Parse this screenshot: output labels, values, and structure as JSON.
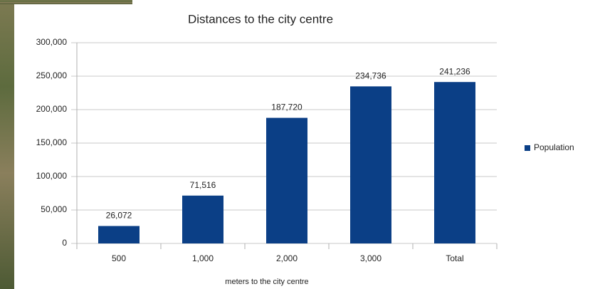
{
  "chart_data": {
    "type": "bar",
    "title": "Distances to the city centre",
    "x_label": "meters to the city centre",
    "categories": [
      "500",
      "1,000",
      "2,000",
      "3,000",
      "Total"
    ],
    "series": [
      {
        "name": "Population",
        "color": "#0b3f86",
        "values": [
          26072,
          71516,
          187720,
          234736,
          241236
        ],
        "value_labels": [
          "26,072",
          "71,516",
          "187,720",
          "234,736",
          "241,236"
        ]
      }
    ],
    "ylim": [
      0,
      300000
    ],
    "yticks": [
      0,
      {
        "value": 50000,
        "label": "50,000"
      },
      {
        "value": 100000,
        "label": "100,000"
      },
      {
        "value": 150000,
        "label": "150,000"
      },
      {
        "value": 200000,
        "label": "200,000"
      },
      {
        "value": 250000,
        "label": "250,000"
      },
      {
        "value": 300000,
        "label": "300,000"
      }
    ],
    "grid": true,
    "legend": "right"
  }
}
